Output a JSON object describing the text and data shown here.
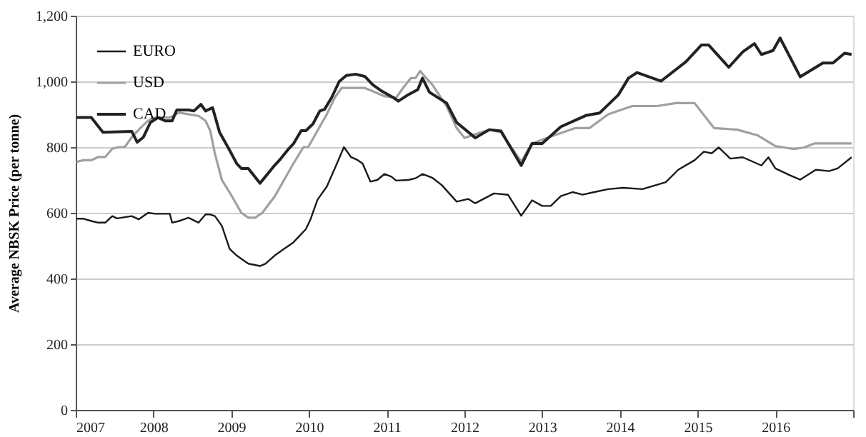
{
  "chart_data": {
    "type": "line",
    "ylabel": "Average NBSK Price (per tonne)",
    "xlim": [
      2007,
      2017
    ],
    "xticks": [
      2007,
      2008,
      2009,
      2010,
      2011,
      2012,
      2013,
      2014,
      2015,
      2016,
      {
        "value": 2017,
        "label": null
      }
    ],
    "ylim": [
      0,
      1200
    ],
    "yticks": [
      0,
      200,
      400,
      600,
      800,
      {
        "value": 1000,
        "label": "1,000"
      },
      {
        "value": 1200,
        "label": "1,200"
      }
    ],
    "grid": "y",
    "legend": "top left",
    "marker": "none",
    "line_style": "solid",
    "series": [
      {
        "name": "EURO",
        "color": "#1a1a1a",
        "x": [
          2007.01,
          2007.1,
          2007.2,
          2007.29,
          2007.38,
          2007.47,
          2007.53,
          2007.72,
          2007.81,
          2007.93,
          2008.02,
          2008.21,
          2008.24,
          2008.33,
          2008.45,
          2008.58,
          2008.67,
          2008.73,
          2008.79,
          2008.88,
          2008.98,
          2009.07,
          2009.13,
          2009.22,
          2009.37,
          2009.44,
          2009.56,
          2009.68,
          2009.8,
          2009.9,
          2009.96,
          2010.02,
          2010.11,
          2010.23,
          2010.36,
          2010.45,
          2010.54,
          2010.63,
          2010.69,
          2010.79,
          2010.88,
          2010.97,
          2011.06,
          2011.12,
          2011.28,
          2011.37,
          2011.46,
          2011.59,
          2011.71,
          2011.9,
          2012.05,
          2012.14,
          2012.38,
          2012.56,
          2012.73,
          2012.87,
          2013.0,
          2013.11,
          2013.24,
          2013.39,
          2013.52,
          2013.67,
          2013.85,
          2014.04,
          2014.29,
          2014.59,
          2014.75,
          2014.96,
          2015.08,
          2015.18,
          2015.27,
          2015.42,
          2015.58,
          2015.82,
          2015.91,
          2016.0,
          2016.19,
          2016.32,
          2016.52,
          2016.69,
          2016.8,
          2016.98
        ],
        "values": [
          582,
          582,
          575,
          570,
          570,
          590,
          583,
          590,
          580,
          600,
          597,
          597,
          570,
          575,
          585,
          570,
          595,
          595,
          590,
          560,
          490,
          470,
          460,
          445,
          438,
          445,
          470,
          490,
          510,
          535,
          550,
          580,
          640,
          680,
          750,
          800,
          770,
          760,
          750,
          695,
          700,
          718,
          710,
          698,
          700,
          705,
          718,
          706,
          684,
          634,
          642,
          629,
          659,
          655,
          591,
          638,
          621,
          621,
          651,
          663,
          655,
          663,
          672,
          676,
          672,
          693,
          731,
          760,
          786,
          781,
          799,
          765,
          769,
          744,
          769,
          735,
          714,
          701,
          731,
          727,
          735,
          769
        ]
      },
      {
        "name": "USD",
        "color": "#a0a0a0",
        "x": [
          2007.01,
          2007.1,
          2007.2,
          2007.29,
          2007.38,
          2007.47,
          2007.56,
          2007.63,
          2007.72,
          2007.84,
          2007.93,
          2008.02,
          2008.21,
          2008.33,
          2008.45,
          2008.58,
          2008.67,
          2008.73,
          2008.79,
          2008.88,
          2009.01,
          2009.13,
          2009.22,
          2009.31,
          2009.4,
          2009.56,
          2009.68,
          2009.8,
          2009.93,
          2009.99,
          2010.11,
          2010.23,
          2010.33,
          2010.42,
          2010.72,
          2010.82,
          2010.97,
          2011.12,
          2011.21,
          2011.31,
          2011.37,
          2011.43,
          2011.49,
          2011.59,
          2011.77,
          2011.9,
          2012.0,
          2012.32,
          2012.47,
          2012.73,
          2012.87,
          2013.11,
          2013.43,
          2013.61,
          2013.85,
          2014.16,
          2014.48,
          2014.72,
          2014.96,
          2015.21,
          2015.51,
          2015.77,
          2016.0,
          2016.24,
          2016.37,
          2016.5,
          2016.98
        ],
        "values": [
          755,
          760,
          760,
          770,
          770,
          795,
          800,
          800,
          830,
          860,
          880,
          890,
          890,
          905,
          900,
          895,
          880,
          850,
          780,
          700,
          650,
          600,
          585,
          585,
          600,
          650,
          700,
          750,
          800,
          800,
          850,
          900,
          950,
          980,
          980,
          970,
          955,
          950,
          980,
          1010,
          1010,
          1032,
          1015,
          989,
          925,
          858,
          828,
          853,
          845,
          756,
          811,
          832,
          858,
          858,
          900,
          925,
          925,
          934,
          934,
          858,
          853,
          836,
          803,
          794,
          799,
          811,
          811
        ]
      },
      {
        "name": "CAD",
        "color": "#222222",
        "x": [
          2007.01,
          2007.2,
          2007.35,
          2007.72,
          2007.79,
          2007.87,
          2007.96,
          2008.06,
          2008.15,
          2008.24,
          2008.3,
          2008.45,
          2008.52,
          2008.61,
          2008.67,
          2008.76,
          2008.85,
          2008.98,
          2009.07,
          2009.13,
          2009.22,
          2009.37,
          2009.44,
          2009.56,
          2009.62,
          2009.74,
          2009.8,
          2009.9,
          2009.96,
          2010.05,
          2010.14,
          2010.2,
          2010.29,
          2010.39,
          2010.48,
          2010.6,
          2010.72,
          2010.82,
          2010.94,
          2011.09,
          2011.15,
          2011.28,
          2011.4,
          2011.46,
          2011.55,
          2011.77,
          2011.9,
          2012.14,
          2012.32,
          2012.47,
          2012.73,
          2012.87,
          2013.0,
          2013.24,
          2013.56,
          2013.74,
          2013.98,
          2014.11,
          2014.22,
          2014.53,
          2014.85,
          2015.05,
          2015.14,
          2015.4,
          2015.58,
          2015.73,
          2015.82,
          2015.97,
          2016.06,
          2016.32,
          2016.61,
          2016.74,
          2016.89,
          2016.98
        ],
        "values": [
          890,
          890,
          845,
          848,
          815,
          830,
          875,
          890,
          880,
          880,
          913,
          913,
          910,
          930,
          910,
          920,
          845,
          790,
          750,
          735,
          735,
          690,
          710,
          745,
          760,
          795,
          810,
          850,
          850,
          870,
          910,
          915,
          950,
          1000,
          1018,
          1022,
          1015,
          990,
          970,
          950,
          940,
          960,
          975,
          1010,
          967,
          934,
          875,
          828,
          853,
          849,
          744,
          811,
          811,
          862,
          896,
          904,
          959,
          1010,
          1027,
          1001,
          1060,
          1111,
          1111,
          1043,
          1090,
          1115,
          1082,
          1094,
          1132,
          1014,
          1056,
          1056,
          1086,
          1082
        ]
      }
    ]
  }
}
